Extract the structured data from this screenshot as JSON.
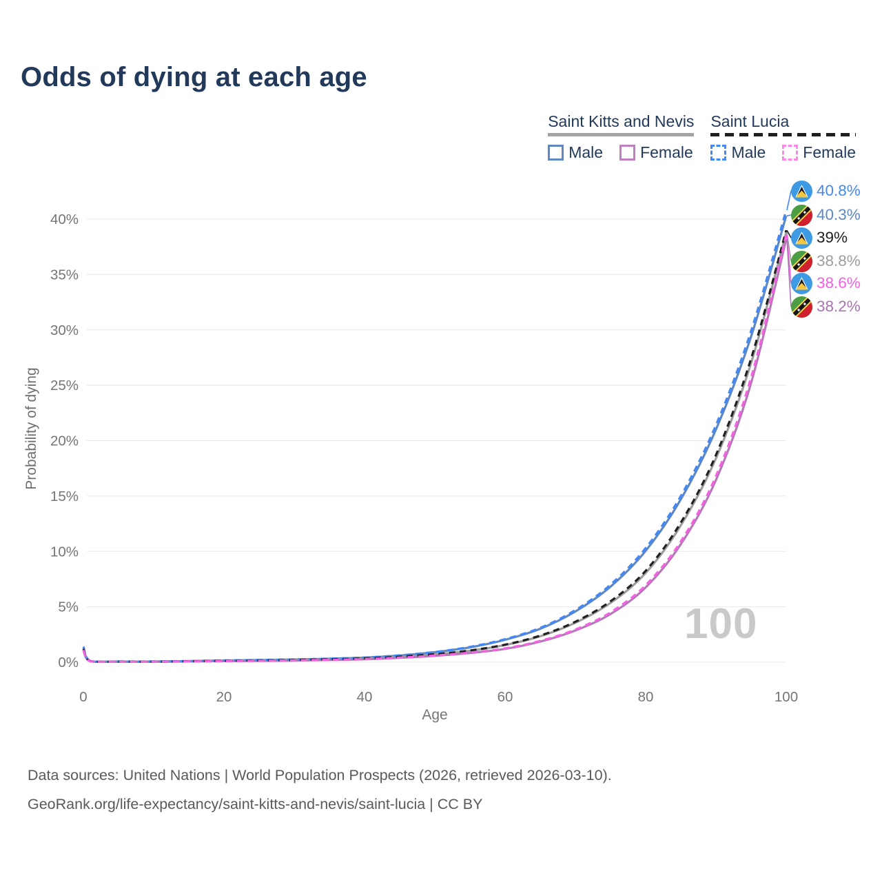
{
  "page": {
    "title": "Odds of dying at each age"
  },
  "legend": {
    "groups": [
      {
        "label": "Saint Kitts and Nevis",
        "line_style": "solid",
        "underline_color": "#a3a3a3",
        "items": [
          {
            "label": "Male",
            "color": "#5e88c4",
            "dashed": false
          },
          {
            "label": "Female",
            "color": "#c07fc0",
            "dashed": false
          }
        ]
      },
      {
        "label": "Saint Lucia",
        "line_style": "dashed",
        "underline_color": "#1f1f1f",
        "items": [
          {
            "label": "Male",
            "color": "#4289f5",
            "dashed": true
          },
          {
            "label": "Female",
            "color": "#fd86e9",
            "dashed": true
          }
        ]
      }
    ]
  },
  "chart_data": {
    "type": "line",
    "title": "Odds of dying at each age",
    "xlabel": "Age",
    "ylabel": "Probability of dying",
    "xlim": [
      0,
      100
    ],
    "ylim": [
      0,
      40
    ],
    "grid": true,
    "legend_position": "top-right",
    "watermark": "100",
    "x_ticks": [
      0,
      20,
      40,
      60,
      80,
      100
    ],
    "y_ticks": [
      "0%",
      "5%",
      "10%",
      "15%",
      "20%",
      "25%",
      "30%",
      "35%",
      "40%"
    ],
    "y_tick_values": [
      0,
      5,
      10,
      15,
      20,
      25,
      30,
      35,
      40
    ],
    "ages": [
      0,
      1,
      5,
      10,
      15,
      20,
      25,
      30,
      35,
      40,
      45,
      50,
      55,
      60,
      65,
      70,
      75,
      80,
      85,
      90,
      95,
      100
    ],
    "series": [
      {
        "name": "Saint Kitts and Nevis Male",
        "country": "saint-kitts-and-nevis",
        "sex": "male",
        "color": "#5e88c4",
        "dashed": false,
        "values": [
          1.3,
          0.1,
          0.06,
          0.06,
          0.1,
          0.15,
          0.19,
          0.24,
          0.31,
          0.41,
          0.6,
          0.9,
          1.34,
          2.02,
          3.02,
          4.58,
          6.82,
          10.05,
          14.7,
          21.0,
          29.4,
          40.3
        ]
      },
      {
        "name": "Saint Kitts and Nevis Total",
        "country": "saint-kitts-and-nevis",
        "sex": "total",
        "color": "#9d9d9d",
        "dashed": false,
        "values": [
          1.15,
          0.09,
          0.05,
          0.05,
          0.08,
          0.12,
          0.15,
          0.19,
          0.25,
          0.33,
          0.48,
          0.7,
          1.03,
          1.55,
          2.34,
          3.56,
          5.35,
          8.05,
          12.35,
          18.4,
          27.0,
          38.8
        ]
      },
      {
        "name": "Saint Kitts and Nevis Female",
        "country": "saint-kitts-and-nevis",
        "sex": "female",
        "color": "#b478b8",
        "dashed": false,
        "values": [
          1.05,
          0.08,
          0.04,
          0.04,
          0.07,
          0.1,
          0.12,
          0.15,
          0.2,
          0.26,
          0.39,
          0.57,
          0.83,
          1.2,
          1.86,
          2.86,
          4.35,
          6.75,
          10.65,
          16.45,
          25.2,
          38.2
        ]
      },
      {
        "name": "Saint Lucia Male",
        "country": "saint-lucia",
        "sex": "male",
        "color": "#4289f5",
        "dashed": true,
        "values": [
          1.4,
          0.1,
          0.06,
          0.06,
          0.1,
          0.16,
          0.2,
          0.25,
          0.32,
          0.42,
          0.62,
          0.92,
          1.38,
          2.08,
          3.1,
          4.7,
          7.0,
          10.3,
          15.0,
          21.4,
          29.9,
          40.8
        ]
      },
      {
        "name": "Saint Lucia Total",
        "country": "saint-lucia",
        "sex": "total",
        "color": "#212121",
        "dashed": true,
        "values": [
          1.2,
          0.09,
          0.05,
          0.05,
          0.08,
          0.12,
          0.16,
          0.2,
          0.26,
          0.34,
          0.5,
          0.72,
          1.06,
          1.58,
          2.4,
          3.65,
          5.5,
          8.25,
          12.6,
          18.7,
          27.4,
          39.0
        ]
      },
      {
        "name": "Saint Lucia Female",
        "country": "saint-lucia",
        "sex": "female",
        "color": "#f562e2",
        "dashed": true,
        "values": [
          1.1,
          0.08,
          0.04,
          0.04,
          0.07,
          0.1,
          0.13,
          0.16,
          0.21,
          0.28,
          0.41,
          0.6,
          0.86,
          1.25,
          1.92,
          2.95,
          4.5,
          6.95,
          10.9,
          16.8,
          25.7,
          38.6
        ]
      }
    ],
    "end_labels": [
      {
        "text": "40.8%",
        "value": 40.8,
        "color": "#4289f5",
        "flag": "saint-lucia"
      },
      {
        "text": "40.3%",
        "value": 40.3,
        "color": "#5e88c4",
        "flag": "saint-kitts-and-nevis"
      },
      {
        "text": "39%",
        "value": 39.0,
        "color": "#1f1f1f",
        "flag": "saint-lucia"
      },
      {
        "text": "38.8%",
        "value": 38.8,
        "color": "#9d9d9d",
        "flag": "saint-kitts-and-nevis"
      },
      {
        "text": "38.6%",
        "value": 38.6,
        "color": "#f65fe3",
        "flag": "saint-lucia"
      },
      {
        "text": "38.2%",
        "value": 38.2,
        "color": "#a874b2",
        "flag": "saint-kitts-and-nevis"
      }
    ]
  },
  "footer": {
    "line1": "Data sources: United Nations | World Population Prospects (2026, retrieved 2026-03-10).",
    "line2": "GeoRank.org/life-expectancy/saint-kitts-and-nevis/saint-lucia | CC BY"
  }
}
